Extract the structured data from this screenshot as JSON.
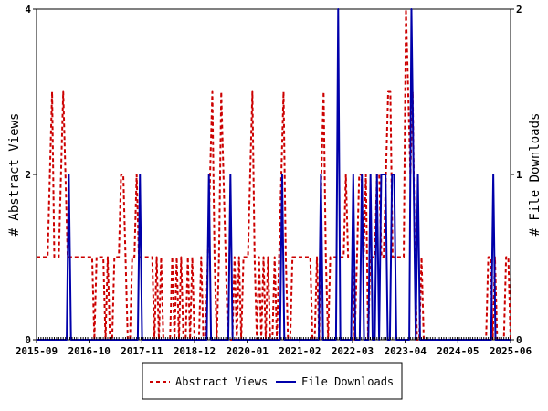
{
  "chart_data": {
    "type": "line",
    "x_tick_labels": [
      "2015-09",
      "2016-10",
      "2017-11",
      "2018-12",
      "2020-01",
      "2021-02",
      "2022-03",
      "2023-04",
      "2024-05",
      "2025-06"
    ],
    "y_left": {
      "label": "# Abstract Views",
      "range": [
        0,
        4
      ],
      "ticks": [
        "0",
        "2",
        "4"
      ]
    },
    "y_right": {
      "label": "# File Downloads",
      "range": [
        0,
        2
      ],
      "ticks": [
        "0",
        "1",
        "2"
      ]
    },
    "series": [
      {
        "name": "Abstract Views",
        "axis": "left",
        "color": "#cc0000",
        "style": "dashed",
        "values": [
          1,
          1,
          1,
          1,
          1,
          1,
          2,
          3,
          1,
          1,
          1,
          2,
          3,
          2,
          1,
          1,
          1,
          1,
          1,
          1,
          1,
          1,
          1,
          1,
          1,
          1,
          0,
          1,
          1,
          1,
          1,
          0,
          1,
          0,
          0,
          1,
          1,
          1,
          2,
          2,
          1,
          0,
          0,
          1,
          1,
          2,
          1,
          1,
          1,
          1,
          1,
          1,
          1,
          0,
          1,
          0,
          1,
          0,
          0,
          0,
          0,
          1,
          0,
          1,
          0,
          1,
          0,
          0,
          1,
          0,
          1,
          0,
          0,
          0,
          1,
          0,
          0,
          1,
          2,
          3,
          1,
          0,
          1,
          3,
          2,
          1,
          0,
          0,
          0,
          1,
          0,
          1,
          0,
          1,
          1,
          1,
          2,
          3,
          1,
          0,
          1,
          0,
          1,
          0,
          1,
          0,
          0,
          1,
          0,
          1,
          2,
          3,
          1,
          0,
          0,
          1,
          1,
          1,
          1,
          1,
          1,
          1,
          1,
          1,
          0,
          0,
          1,
          0,
          2,
          3,
          1,
          0,
          1,
          1,
          1,
          1,
          1,
          1,
          1,
          2,
          1,
          1,
          1,
          0,
          1,
          2,
          2,
          1,
          2,
          0,
          1,
          1,
          1,
          2,
          2,
          1,
          1,
          2,
          3,
          3,
          1,
          1,
          1,
          1,
          1,
          1,
          4,
          3,
          2,
          3,
          1,
          0,
          0,
          1,
          0,
          0,
          0,
          0,
          0,
          0,
          0,
          0,
          0,
          0,
          0,
          0,
          0,
          0,
          0,
          0,
          0,
          0,
          0,
          0,
          0,
          0,
          0,
          0,
          0,
          0,
          0,
          0,
          0,
          1,
          1,
          0,
          1,
          0,
          0,
          0,
          0,
          1,
          1,
          0
        ]
      },
      {
        "name": "File Downloads",
        "axis": "right",
        "color": "#0000aa",
        "style": "solid",
        "values": [
          0,
          0,
          0,
          0,
          0,
          0,
          0,
          0,
          0,
          0,
          0,
          0,
          0,
          0,
          0,
          1,
          0,
          0,
          0,
          0,
          0,
          0,
          0,
          0,
          0,
          0,
          0,
          0,
          0,
          0,
          0,
          0,
          0,
          0,
          0,
          0,
          0,
          0,
          0,
          0,
          0,
          0,
          0,
          0,
          0,
          0,
          0,
          0,
          1,
          0,
          0,
          0,
          0,
          0,
          0,
          0,
          0,
          0,
          0,
          0,
          0,
          0,
          0,
          0,
          0,
          0,
          0,
          0,
          0,
          0,
          0,
          0,
          0,
          0,
          0,
          0,
          0,
          0,
          0,
          0,
          1,
          0,
          0,
          0,
          0,
          0,
          0,
          0,
          0,
          0,
          1,
          0,
          0,
          0,
          0,
          0,
          0,
          0,
          0,
          0,
          0,
          0,
          0,
          0,
          0,
          0,
          0,
          0,
          0,
          0,
          0,
          0,
          0,
          0,
          1,
          0,
          0,
          0,
          0,
          0,
          0,
          0,
          0,
          0,
          0,
          0,
          0,
          0,
          0,
          0,
          0,
          0,
          1,
          0,
          0,
          0,
          0,
          0,
          0,
          0,
          2,
          0,
          0,
          0,
          0,
          0,
          0,
          1,
          0,
          0,
          0,
          1,
          0,
          0,
          0,
          1,
          0,
          0,
          1,
          0,
          1,
          1,
          1,
          0,
          0,
          1,
          1,
          0,
          0,
          0,
          0,
          0,
          0,
          0,
          2,
          1,
          0,
          1,
          0,
          0,
          0,
          0,
          0,
          0,
          0,
          0,
          0,
          0,
          0,
          0,
          0,
          0,
          0,
          0,
          0,
          0,
          0,
          0,
          0,
          0,
          0,
          0,
          0,
          0,
          0,
          0,
          0,
          0,
          0,
          0,
          0,
          0,
          1,
          0,
          0,
          0,
          0,
          0,
          0,
          0,
          0
        ]
      }
    ],
    "legend": {
      "placement": "bottom-center"
    },
    "grid": false
  }
}
